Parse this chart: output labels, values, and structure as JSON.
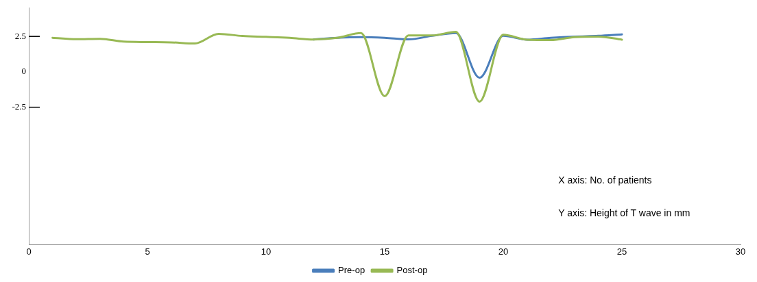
{
  "chart_data": {
    "type": "line",
    "x": [
      1,
      2,
      3,
      4,
      5,
      6,
      7,
      8,
      9,
      10,
      11,
      12,
      13,
      14,
      15,
      16,
      17,
      18,
      19,
      20,
      21,
      22,
      23,
      24,
      25
    ],
    "series": [
      {
        "name": "Pre-op",
        "color": "#4a7ebb",
        "values": [
          null,
          null,
          null,
          null,
          null,
          null,
          null,
          null,
          null,
          null,
          null,
          2.28,
          2.4,
          2.45,
          2.4,
          2.29,
          2.54,
          2.74,
          -0.42,
          2.54,
          2.27,
          2.4,
          2.49,
          2.54,
          2.64
        ]
      },
      {
        "name": "Post-op",
        "color": "#98b954",
        "values": [
          2.4,
          2.3,
          2.33,
          2.13,
          2.1,
          2.08,
          2.0,
          2.68,
          2.53,
          2.47,
          2.4,
          2.28,
          2.4,
          2.74,
          -1.72,
          2.57,
          2.57,
          2.82,
          -2.1,
          2.62,
          2.27,
          2.24,
          2.45,
          2.49,
          2.27
        ]
      }
    ],
    "xlim": [
      0,
      30
    ],
    "xticks": [
      0,
      5,
      10,
      15,
      20,
      25,
      30
    ],
    "ylim": [
      -12.2,
      4.5
    ],
    "yticks": [
      2.5,
      0,
      -2.5
    ],
    "annotations": [
      "X axis: No. of patients",
      "Y axis: Height of T wave in mm"
    ],
    "grid": false,
    "legend": "bottom",
    "marker": "none",
    "line_style": "solid"
  }
}
